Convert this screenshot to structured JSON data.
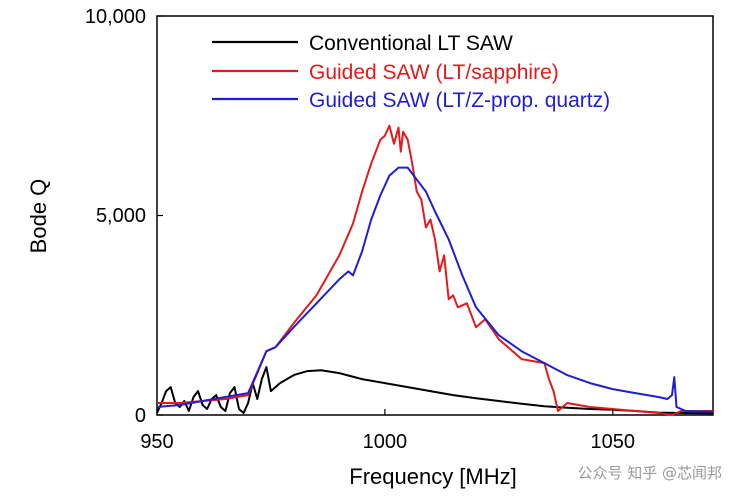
{
  "chart_data": {
    "type": "line",
    "title": "",
    "xlabel": "Frequency [MHz]",
    "ylabel": "Bode Q",
    "xlim": [
      950,
      1072
    ],
    "ylim": [
      0,
      10000
    ],
    "xticks": [
      950,
      1000,
      1050
    ],
    "xtick_labels": [
      "950",
      "1000",
      "1050"
    ],
    "yticks": [
      0,
      5000,
      10000
    ],
    "ytick_labels": [
      "0",
      "5,000",
      "10,000"
    ],
    "grid": false,
    "legend_position": "top",
    "series": [
      {
        "name": "Conventional LT SAW",
        "color": "#000000",
        "x": [
          950,
          951,
          952,
          953,
          954,
          955,
          956,
          957,
          958,
          959,
          960,
          961,
          962,
          963,
          964,
          965,
          966,
          967,
          968,
          969,
          970,
          971,
          972,
          973,
          974,
          975,
          977,
          980,
          983,
          986,
          990,
          995,
          1000,
          1005,
          1010,
          1015,
          1020,
          1025,
          1030,
          1035,
          1040,
          1045,
          1050,
          1055,
          1060,
          1065,
          1072
        ],
        "y": [
          50,
          300,
          600,
          700,
          300,
          200,
          350,
          100,
          450,
          600,
          250,
          150,
          400,
          500,
          200,
          100,
          550,
          700,
          150,
          50,
          300,
          800,
          400,
          900,
          1200,
          600,
          800,
          1000,
          1100,
          1120,
          1050,
          900,
          800,
          700,
          600,
          500,
          420,
          350,
          280,
          220,
          180,
          150,
          130,
          100,
          60,
          50,
          40
        ]
      },
      {
        "name": "Guided SAW (LT/sapphire)",
        "color": "#e31a1c",
        "x": [
          950,
          955,
          960,
          965,
          970,
          974,
          976,
          980,
          985,
          990,
          993,
          995,
          997,
          999,
          1000,
          1001,
          1002,
          1003,
          1003.5,
          1004,
          1005,
          1006,
          1007,
          1008,
          1009,
          1010,
          1011,
          1012,
          1013,
          1014,
          1015,
          1016,
          1018,
          1020,
          1022,
          1025,
          1030,
          1035,
          1036,
          1037,
          1038,
          1040,
          1045,
          1050,
          1055,
          1060,
          1063,
          1065,
          1072
        ],
        "y": [
          300,
          300,
          350,
          400,
          500,
          1600,
          1700,
          2300,
          3000,
          4000,
          4800,
          5600,
          6300,
          6900,
          7000,
          7250,
          6800,
          7200,
          6600,
          7100,
          6900,
          6300,
          5600,
          5400,
          4700,
          4900,
          4400,
          3600,
          4000,
          2900,
          3000,
          2700,
          2800,
          2200,
          2400,
          1900,
          1400,
          1300,
          900,
          600,
          100,
          300,
          200,
          150,
          100,
          50,
          0,
          100,
          100
        ]
      },
      {
        "name": "Guided SAW (LT/Z-prop. quartz)",
        "color": "#1f1fd1",
        "x": [
          950,
          955,
          960,
          965,
          970,
          974,
          976,
          980,
          985,
          990,
          992,
          993,
          995,
          997,
          999,
          1001,
          1003,
          1005,
          1007,
          1009,
          1011,
          1014,
          1017,
          1020,
          1025,
          1030,
          1035,
          1040,
          1045,
          1050,
          1055,
          1060,
          1062,
          1063,
          1063.5,
          1064,
          1066,
          1072
        ],
        "y": [
          200,
          250,
          350,
          450,
          550,
          1600,
          1700,
          2200,
          2800,
          3400,
          3600,
          3500,
          4100,
          4900,
          5500,
          6000,
          6200,
          6200,
          5900,
          5600,
          5100,
          4400,
          3500,
          2700,
          2000,
          1600,
          1300,
          1000,
          800,
          650,
          550,
          450,
          400,
          500,
          950,
          200,
          100,
          80
        ]
      }
    ]
  },
  "watermark": "公众号 知乎 @芯闻邦"
}
